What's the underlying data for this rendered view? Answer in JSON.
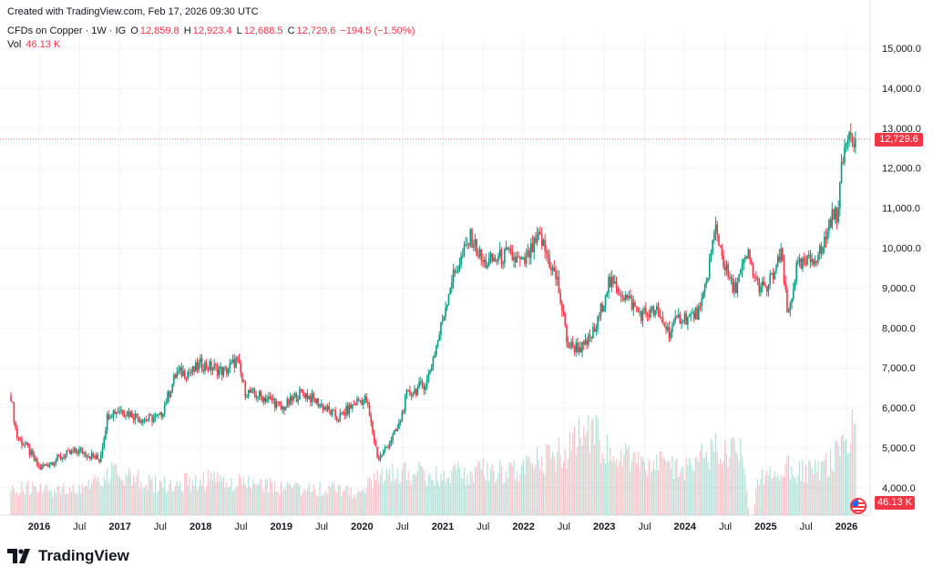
{
  "header": {
    "created": "Created with TradingView.com, Feb 17, 2026 09:30 UTC"
  },
  "legend": {
    "symbol": "CFDs on Copper · 1W · IG",
    "open_label": "O",
    "open": "12,859.8",
    "high_label": "H",
    "high": "12,923.4",
    "low_label": "L",
    "low": "12,688.5",
    "close_label": "C",
    "close": "12,729.6",
    "change": "−194.5 (−1.50%)",
    "vol_label": "Vol",
    "vol": "46.13 K"
  },
  "price_tag": "12,729.6",
  "vol_tag": "46.13 K",
  "logo_text": "TradingView",
  "colors": {
    "up": "#089981",
    "down": "#F23645",
    "grid": "#f0f3fa"
  },
  "chart_data": {
    "type": "candlestick",
    "title": "CFDs on Copper · 1W · IG",
    "interval": "1W",
    "ylim": [
      3500,
      15000
    ],
    "y_ticks": [
      "4,000.0",
      "5,000.0",
      "6,000.0",
      "7,000.0",
      "8,000.0",
      "9,000.0",
      "10,000.0",
      "11,000.0",
      "12,000.0",
      "13,000.0",
      "14,000.0",
      "15,000.0"
    ],
    "y_tick_values": [
      4000,
      5000,
      6000,
      7000,
      8000,
      9000,
      10000,
      11000,
      12000,
      13000,
      14000,
      15000
    ],
    "x_ticks": [
      {
        "label": "2016",
        "t": 2016.0,
        "bold": true
      },
      {
        "label": "Jul",
        "t": 2016.5
      },
      {
        "label": "2017",
        "t": 2017.0,
        "bold": true
      },
      {
        "label": "Jul",
        "t": 2017.5
      },
      {
        "label": "2018",
        "t": 2018.0,
        "bold": true
      },
      {
        "label": "Jul",
        "t": 2018.5
      },
      {
        "label": "2019",
        "t": 2019.0,
        "bold": true
      },
      {
        "label": "Jul",
        "t": 2019.5
      },
      {
        "label": "2020",
        "t": 2020.0,
        "bold": true
      },
      {
        "label": "Jul",
        "t": 2020.5
      },
      {
        "label": "2021",
        "t": 2021.0,
        "bold": true
      },
      {
        "label": "Jul",
        "t": 2021.5
      },
      {
        "label": "2022",
        "t": 2022.0,
        "bold": true
      },
      {
        "label": "Jul",
        "t": 2022.5
      },
      {
        "label": "2023",
        "t": 2023.0,
        "bold": true
      },
      {
        "label": "Jul",
        "t": 2023.5
      },
      {
        "label": "2024",
        "t": 2024.0,
        "bold": true
      },
      {
        "label": "Jul",
        "t": 2024.5
      },
      {
        "label": "2025",
        "t": 2025.0,
        "bold": true
      },
      {
        "label": "Jul",
        "t": 2025.5
      },
      {
        "label": "2026",
        "t": 2026.0,
        "bold": true
      }
    ],
    "price_anchors": [
      [
        2015.65,
        6300
      ],
      [
        2015.72,
        5300
      ],
      [
        2015.85,
        5000
      ],
      [
        2016.0,
        4480
      ],
      [
        2016.3,
        4800
      ],
      [
        2016.5,
        4930
      ],
      [
        2016.75,
        4700
      ],
      [
        2016.85,
        5840
      ],
      [
        2017.0,
        5960
      ],
      [
        2017.3,
        5700
      ],
      [
        2017.5,
        5780
      ],
      [
        2017.7,
        6870
      ],
      [
        2017.9,
        6900
      ],
      [
        2018.0,
        7100
      ],
      [
        2018.3,
        6900
      ],
      [
        2018.45,
        7200
      ],
      [
        2018.55,
        6410
      ],
      [
        2018.9,
        6180
      ],
      [
        2019.0,
        5960
      ],
      [
        2019.25,
        6400
      ],
      [
        2019.5,
        6070
      ],
      [
        2019.7,
        5730
      ],
      [
        2019.95,
        6180
      ],
      [
        2020.05,
        6200
      ],
      [
        2020.2,
        4700
      ],
      [
        2020.45,
        5500
      ],
      [
        2020.55,
        6300
      ],
      [
        2020.8,
        6640
      ],
      [
        2020.95,
        7780
      ],
      [
        2021.1,
        9150
      ],
      [
        2021.35,
        10280
      ],
      [
        2021.5,
        9600
      ],
      [
        2021.8,
        9830
      ],
      [
        2022.0,
        9600
      ],
      [
        2022.2,
        10280
      ],
      [
        2022.42,
        9150
      ],
      [
        2022.55,
        7550
      ],
      [
        2022.75,
        7500
      ],
      [
        2022.9,
        8000
      ],
      [
        2023.05,
        9150
      ],
      [
        2023.2,
        8920
      ],
      [
        2023.45,
        8350
      ],
      [
        2023.65,
        8400
      ],
      [
        2023.8,
        7890
      ],
      [
        2023.95,
        8300
      ],
      [
        2024.05,
        8240
      ],
      [
        2024.2,
        8460
      ],
      [
        2024.38,
        10510
      ],
      [
        2024.5,
        9490
      ],
      [
        2024.6,
        8920
      ],
      [
        2024.78,
        9830
      ],
      [
        2024.88,
        9150
      ],
      [
        2025.0,
        8920
      ],
      [
        2025.2,
        9830
      ],
      [
        2025.27,
        8240
      ],
      [
        2025.38,
        9490
      ],
      [
        2025.5,
        9600
      ],
      [
        2025.7,
        9940
      ],
      [
        2025.8,
        10740
      ],
      [
        2025.88,
        10850
      ],
      [
        2025.95,
        12100
      ],
      [
        2026.02,
        13020
      ],
      [
        2026.12,
        12730
      ]
    ],
    "volume_anchors_k": [
      [
        2015.65,
        14
      ],
      [
        2016.5,
        12
      ],
      [
        2016.85,
        22
      ],
      [
        2017.5,
        15
      ],
      [
        2018.0,
        18
      ],
      [
        2018.5,
        16
      ],
      [
        2019.0,
        14
      ],
      [
        2019.5,
        13
      ],
      [
        2020.0,
        12
      ],
      [
        2020.3,
        22
      ],
      [
        2021.0,
        20
      ],
      [
        2021.5,
        22
      ],
      [
        2022.0,
        24
      ],
      [
        2022.5,
        32
      ],
      [
        2022.8,
        42
      ],
      [
        2023.0,
        36
      ],
      [
        2023.5,
        26
      ],
      [
        2024.0,
        24
      ],
      [
        2024.4,
        34
      ],
      [
        2024.7,
        30
      ],
      [
        2024.8,
        0
      ],
      [
        2024.85,
        0
      ],
      [
        2024.9,
        20
      ],
      [
        2025.3,
        24
      ],
      [
        2025.7,
        22
      ],
      [
        2025.95,
        34
      ],
      [
        2026.12,
        46.13
      ]
    ],
    "last_close": 12729.6,
    "last_volume_k": 46.13
  }
}
